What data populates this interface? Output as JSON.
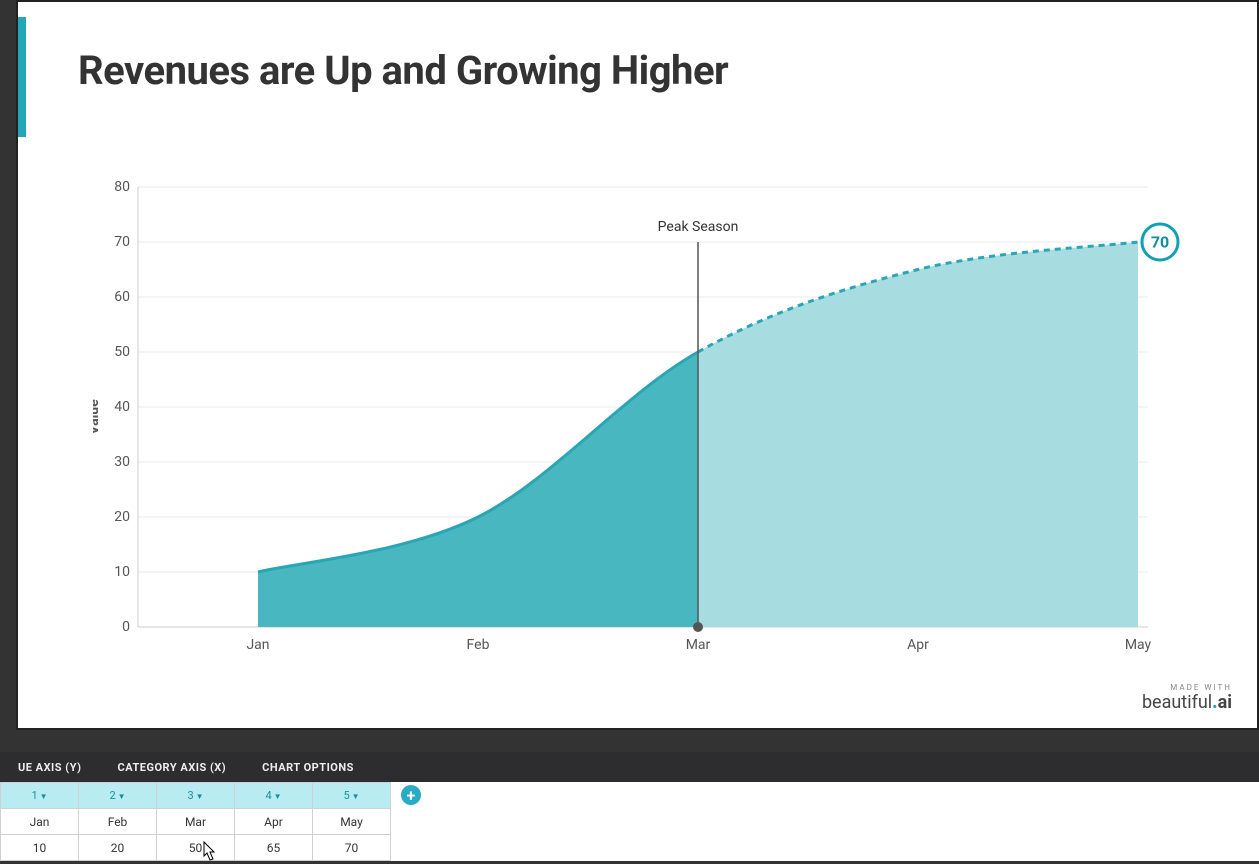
{
  "slide": {
    "title": "Revenues are Up and Growing Higher",
    "accent_color": "#23a6b8",
    "background": "#ffffff"
  },
  "chart": {
    "type": "area",
    "categories": [
      "Jan",
      "Feb",
      "Mar",
      "Apr",
      "May"
    ],
    "values": [
      10,
      20,
      50,
      65,
      70
    ],
    "ylabel": "Value",
    "ylim": [
      0,
      80
    ],
    "ytick_step": 10,
    "yticks": [
      0,
      10,
      20,
      30,
      40,
      50,
      60,
      70,
      80
    ],
    "line_color_solid": "#2aa5b5",
    "fill_color_solid": "#48b7bf",
    "line_color_dashed": "#2aa5b5",
    "fill_color_dashed": "#a7dde1",
    "split_index": 2,
    "grid_color": "#e8e8e8",
    "axis_color": "#999999",
    "axis_label_color": "#555555",
    "axis_fontsize": 14,
    "line_width_solid": 3,
    "line_width_dashed": 3,
    "dash_pattern": "6,5",
    "annotation": {
      "label": "Peak Season",
      "at_index": 2,
      "line_color": "#555555",
      "dot_color": "#555555"
    },
    "end_badge": {
      "value": "70",
      "stroke": "#12a0b3",
      "fill": "#ffffff",
      "text_color": "#0f90a1",
      "radius": 18
    }
  },
  "watermark": {
    "made_with": "MADE WITH",
    "brand_prefix": "beautiful",
    "brand_suffix": "ai"
  },
  "editor": {
    "tabs": {
      "value_axis": "UE AXIS (Y)",
      "category_axis": "CATEGORY AXIS (X)",
      "chart_options": "CHART OPTIONS"
    },
    "columns": [
      {
        "num": "1",
        "label": "Jan",
        "value": "10"
      },
      {
        "num": "2",
        "label": "Feb",
        "value": "20"
      },
      {
        "num": "3",
        "label": "Mar",
        "value": "50"
      },
      {
        "num": "4",
        "label": "Apr",
        "value": "65"
      },
      {
        "num": "5",
        "label": "May",
        "value": "70"
      }
    ],
    "header_bg": "#b9ebf2",
    "header_text": "#1a8fa0",
    "add_button_bg": "#29abc4"
  }
}
